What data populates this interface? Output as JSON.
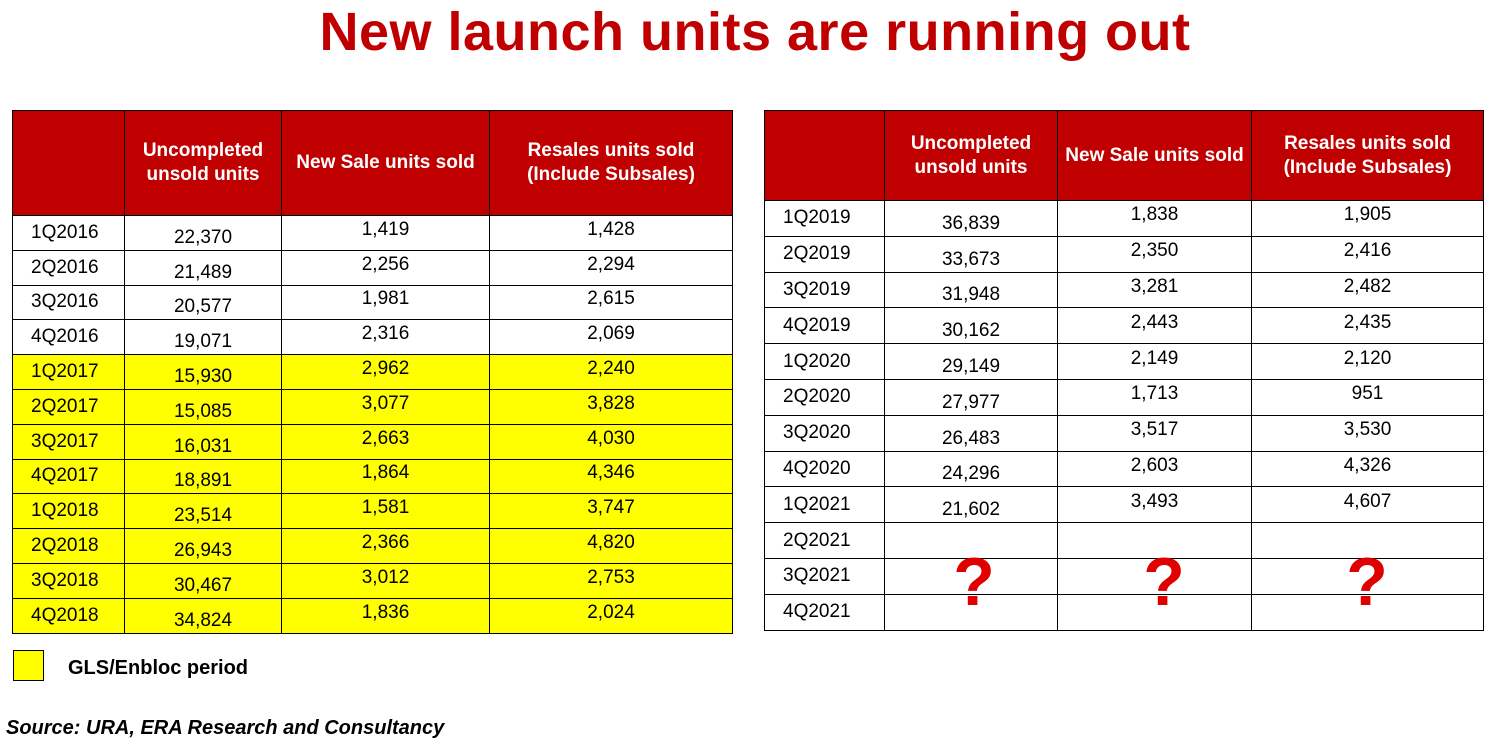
{
  "title": "New launch units are running out",
  "headers": {
    "uncompleted_line1": "Uncompleted",
    "uncompleted_line2": "unsold units",
    "new_sale": "New Sale units sold",
    "resales_line1": "Resales units sold",
    "resales_line2": "(Include Subsales)"
  },
  "colors": {
    "header_bg": "#c00000",
    "highlight": "#ffff00",
    "question_mark": "#e00000"
  },
  "left_rows": [
    {
      "period": "1Q2016",
      "uncompleted": "22,370",
      "new_sale": "1,419",
      "resales": "1,428",
      "highlight": false
    },
    {
      "period": "2Q2016",
      "uncompleted": "21,489",
      "new_sale": "2,256",
      "resales": "2,294",
      "highlight": false
    },
    {
      "period": "3Q2016",
      "uncompleted": "20,577",
      "new_sale": "1,981",
      "resales": "2,615",
      "highlight": false
    },
    {
      "period": "4Q2016",
      "uncompleted": "19,071",
      "new_sale": "2,316",
      "resales": "2,069",
      "highlight": false
    },
    {
      "period": "1Q2017",
      "uncompleted": "15,930",
      "new_sale": "2,962",
      "resales": "2,240",
      "highlight": true
    },
    {
      "period": "2Q2017",
      "uncompleted": "15,085",
      "new_sale": "3,077",
      "resales": "3,828",
      "highlight": true
    },
    {
      "period": "3Q2017",
      "uncompleted": "16,031",
      "new_sale": "2,663",
      "resales": "4,030",
      "highlight": true
    },
    {
      "period": "4Q2017",
      "uncompleted": "18,891",
      "new_sale": "1,864",
      "resales": "4,346",
      "highlight": true
    },
    {
      "period": "1Q2018",
      "uncompleted": "23,514",
      "new_sale": "1,581",
      "resales": "3,747",
      "highlight": true
    },
    {
      "period": "2Q2018",
      "uncompleted": "26,943",
      "new_sale": "2,366",
      "resales": "4,820",
      "highlight": true
    },
    {
      "period": "3Q2018",
      "uncompleted": "30,467",
      "new_sale": "3,012",
      "resales": "2,753",
      "highlight": true
    },
    {
      "period": "4Q2018",
      "uncompleted": "34,824",
      "new_sale": "1,836",
      "resales": "2,024",
      "highlight": true
    }
  ],
  "right_rows": [
    {
      "period": "1Q2019",
      "uncompleted": "36,839",
      "new_sale": "1,838",
      "resales": "1,905"
    },
    {
      "period": "2Q2019",
      "uncompleted": "33,673",
      "new_sale": "2,350",
      "resales": "2,416"
    },
    {
      "period": "3Q2019",
      "uncompleted": "31,948",
      "new_sale": "3,281",
      "resales": "2,482"
    },
    {
      "period": "4Q2019",
      "uncompleted": "30,162",
      "new_sale": "2,443",
      "resales": "2,435"
    },
    {
      "period": "1Q2020",
      "uncompleted": "29,149",
      "new_sale": "2,149",
      "resales": "2,120"
    },
    {
      "period": "2Q2020",
      "uncompleted": "27,977",
      "new_sale": "1,713",
      "resales": "951"
    },
    {
      "period": "3Q2020",
      "uncompleted": "26,483",
      "new_sale": "3,517",
      "resales": "3,530"
    },
    {
      "period": "4Q2020",
      "uncompleted": "24,296",
      "new_sale": "2,603",
      "resales": "4,326"
    },
    {
      "period": "1Q2021",
      "uncompleted": "21,602",
      "new_sale": "3,493",
      "resales": "4,607"
    },
    {
      "period": "2Q2021",
      "uncompleted": "",
      "new_sale": "",
      "resales": ""
    },
    {
      "period": "3Q2021",
      "uncompleted": "",
      "new_sale": "",
      "resales": ""
    },
    {
      "period": "4Q2021",
      "uncompleted": "",
      "new_sale": "",
      "resales": ""
    }
  ],
  "unknown_mark": "?",
  "legend": {
    "label": "GLS/Enbloc period"
  },
  "source": "Source: URA, ERA Research and Consultancy"
}
